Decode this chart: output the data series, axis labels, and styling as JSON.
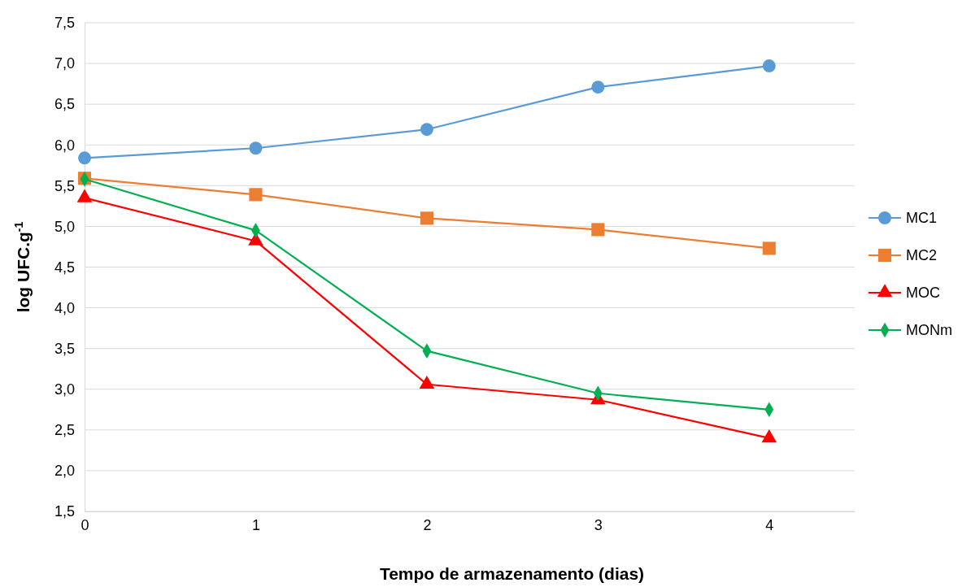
{
  "chart_data": {
    "type": "line",
    "xlabel": "Tempo de armazenamento (dias)",
    "ylabel": "log UFC.g$^{-1}$",
    "x": [
      0,
      1,
      2,
      3,
      4
    ],
    "xlim": [
      0,
      4.5
    ],
    "xticks": [
      0,
      1,
      2,
      3,
      4
    ],
    "ylim": [
      1.5,
      7.5
    ],
    "yticks": [
      {
        "value": 1.5,
        "label": "1,5"
      },
      {
        "value": 2,
        "label": "2,0"
      },
      {
        "value": 2.5,
        "label": "2,5"
      },
      {
        "value": 3,
        "label": "3,0"
      },
      {
        "value": 3.5,
        "label": "3,5"
      },
      {
        "value": 4,
        "label": "4,0"
      },
      {
        "value": 4.5,
        "label": "4,5"
      },
      {
        "value": 5,
        "label": "5,0"
      },
      {
        "value": 5.5,
        "label": "5,5"
      },
      {
        "value": 6,
        "label": "6,0"
      },
      {
        "value": 6.5,
        "label": "6,5"
      },
      {
        "value": 7,
        "label": "7,0"
      },
      {
        "value": 7.5,
        "label": "7,5"
      }
    ],
    "grid": "y",
    "legend": "right",
    "line_style": "solid",
    "series": [
      {
        "name": "MC1",
        "color": "#5b9bd5",
        "marker": "circle",
        "values": [
          5.84,
          5.96,
          6.19,
          6.71,
          6.97
        ]
      },
      {
        "name": "MC2",
        "color": "#ed7d31",
        "marker": "square",
        "values": [
          5.59,
          5.39,
          5.1,
          4.96,
          4.73
        ]
      },
      {
        "name": "MOC",
        "color": "#ff0000",
        "marker": "triangle",
        "values": [
          5.35,
          4.82,
          3.06,
          2.87,
          2.4
        ]
      },
      {
        "name": "MONm",
        "color": "#00b050",
        "marker": "diamond",
        "values": [
          5.58,
          4.95,
          3.47,
          2.95,
          2.75
        ]
      }
    ]
  }
}
